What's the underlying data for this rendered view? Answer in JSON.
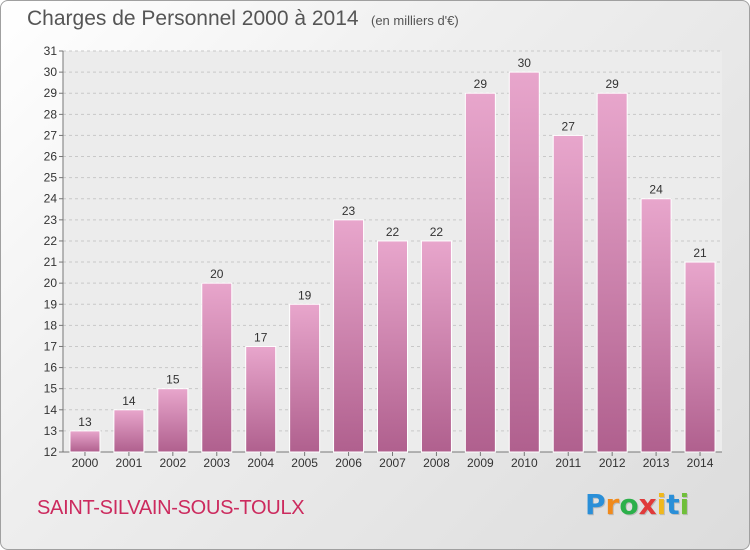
{
  "chart_data": {
    "type": "bar",
    "title": "Charges de Personnel 2000 à 2014",
    "subtitle": "(en milliers d'€)",
    "categories": [
      "2000",
      "2001",
      "2002",
      "2003",
      "2004",
      "2005",
      "2006",
      "2007",
      "2008",
      "2009",
      "2010",
      "2011",
      "2012",
      "2013",
      "2014"
    ],
    "values": [
      13,
      14,
      15,
      20,
      17,
      19,
      23,
      22,
      22,
      29,
      30,
      27,
      29,
      24,
      21
    ],
    "ylim": [
      12,
      31
    ],
    "yticks": [
      12,
      13,
      14,
      15,
      16,
      17,
      18,
      19,
      20,
      21,
      22,
      23,
      24,
      25,
      26,
      27,
      28,
      29,
      30,
      31
    ],
    "grid": true,
    "bar_color_top": "#e8a6cc",
    "bar_color_bottom": "#b0608e"
  },
  "footer": {
    "place_name": "SAINT-SILVAIN-SOUS-TOULX",
    "logo_letters": [
      "P",
      "r",
      "o",
      "x",
      "i",
      "t",
      "i"
    ],
    "logo_colors": [
      "#2a8fd8",
      "#f08a1c",
      "#2bb04a",
      "#e03a3a",
      "#f0b81c",
      "#2a8fd8",
      "#6fbf3a"
    ]
  }
}
